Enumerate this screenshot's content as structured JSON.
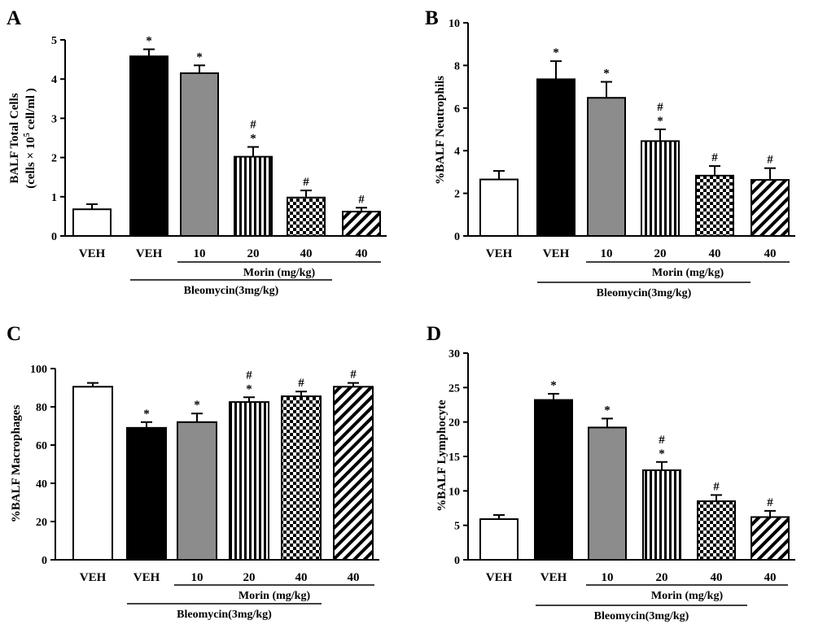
{
  "colors": {
    "axis": "#000000",
    "veh": "#ffffff",
    "bleo": "#000000",
    "morin10": "#8c8c8c"
  },
  "group_labels": {
    "morin": "Morin (mg/kg)",
    "bleomycin": "Bleomycin(3mg/kg)"
  },
  "chart_data": [
    {
      "panel": "A",
      "type": "bar",
      "ylabel_lines": [
        "BALF Total Cells",
        "(cells × 10",
        "5",
        " cell/ml )"
      ],
      "ylim": [
        0,
        5
      ],
      "yticks": [
        "0",
        "1",
        "2",
        "3",
        "4",
        "5"
      ],
      "categories": [
        "VEH",
        "VEH",
        "10",
        "20",
        "40",
        "40"
      ],
      "fills": [
        "white",
        "black",
        "gray",
        "vstripes",
        "checker",
        "diagonal"
      ],
      "values": [
        0.68,
        4.58,
        4.15,
        2.02,
        0.98,
        0.62
      ],
      "errors": [
        0.13,
        0.18,
        0.2,
        0.25,
        0.18,
        0.1
      ],
      "marks": [
        [],
        [
          "*"
        ],
        [
          "*"
        ],
        [
          "*",
          "#"
        ],
        [
          "#"
        ],
        [
          "#"
        ]
      ]
    },
    {
      "panel": "B",
      "type": "bar",
      "ylabel": "%BALF Neutrophils",
      "ylim": [
        0,
        10
      ],
      "yticks": [
        "0",
        "2",
        "4",
        "6",
        "8",
        "10"
      ],
      "categories": [
        "VEH",
        "VEH",
        "10",
        "20",
        "40",
        "40"
      ],
      "fills": [
        "white",
        "black",
        "gray",
        "vstripes",
        "checker",
        "diagonal"
      ],
      "values": [
        2.65,
        7.35,
        6.48,
        4.45,
        2.83,
        2.63
      ],
      "errors": [
        0.4,
        0.85,
        0.75,
        0.55,
        0.45,
        0.55
      ],
      "marks": [
        [],
        [
          "*"
        ],
        [
          "*"
        ],
        [
          "*",
          "#"
        ],
        [
          "#"
        ],
        [
          "#"
        ]
      ]
    },
    {
      "panel": "C",
      "type": "bar",
      "ylabel": "%BALF Macrophages",
      "ylim": [
        0,
        100
      ],
      "yticks": [
        "0",
        "20",
        "40",
        "60",
        "80",
        "100"
      ],
      "categories": [
        "VEH",
        "VEH",
        "10",
        "20",
        "40",
        "40"
      ],
      "fills": [
        "white",
        "black",
        "gray",
        "vstripes",
        "checker",
        "diagonal"
      ],
      "values": [
        90.5,
        69.0,
        72.0,
        82.5,
        85.5,
        90.5
      ],
      "errors": [
        2.0,
        3.0,
        4.5,
        2.5,
        2.5,
        2.0
      ],
      "marks": [
        [],
        [
          "*"
        ],
        [
          "*"
        ],
        [
          "*",
          "#"
        ],
        [
          "#"
        ],
        [
          "#"
        ]
      ]
    },
    {
      "panel": "D",
      "type": "bar",
      "ylabel": "%BALF Lymphocyte",
      "ylim": [
        0,
        30
      ],
      "yticks": [
        "0",
        "5",
        "10",
        "15",
        "20",
        "25",
        "30"
      ],
      "categories": [
        "VEH",
        "VEH",
        "10",
        "20",
        "40",
        "40"
      ],
      "fills": [
        "white",
        "black",
        "gray",
        "vstripes",
        "checker",
        "diagonal"
      ],
      "values": [
        5.9,
        23.2,
        19.2,
        13.0,
        8.5,
        6.2
      ],
      "errors": [
        0.6,
        0.9,
        1.3,
        1.2,
        0.9,
        0.9
      ],
      "marks": [
        [],
        [
          "*"
        ],
        [
          "*"
        ],
        [
          "*",
          "#"
        ],
        [
          "#"
        ],
        [
          "#"
        ]
      ]
    }
  ]
}
